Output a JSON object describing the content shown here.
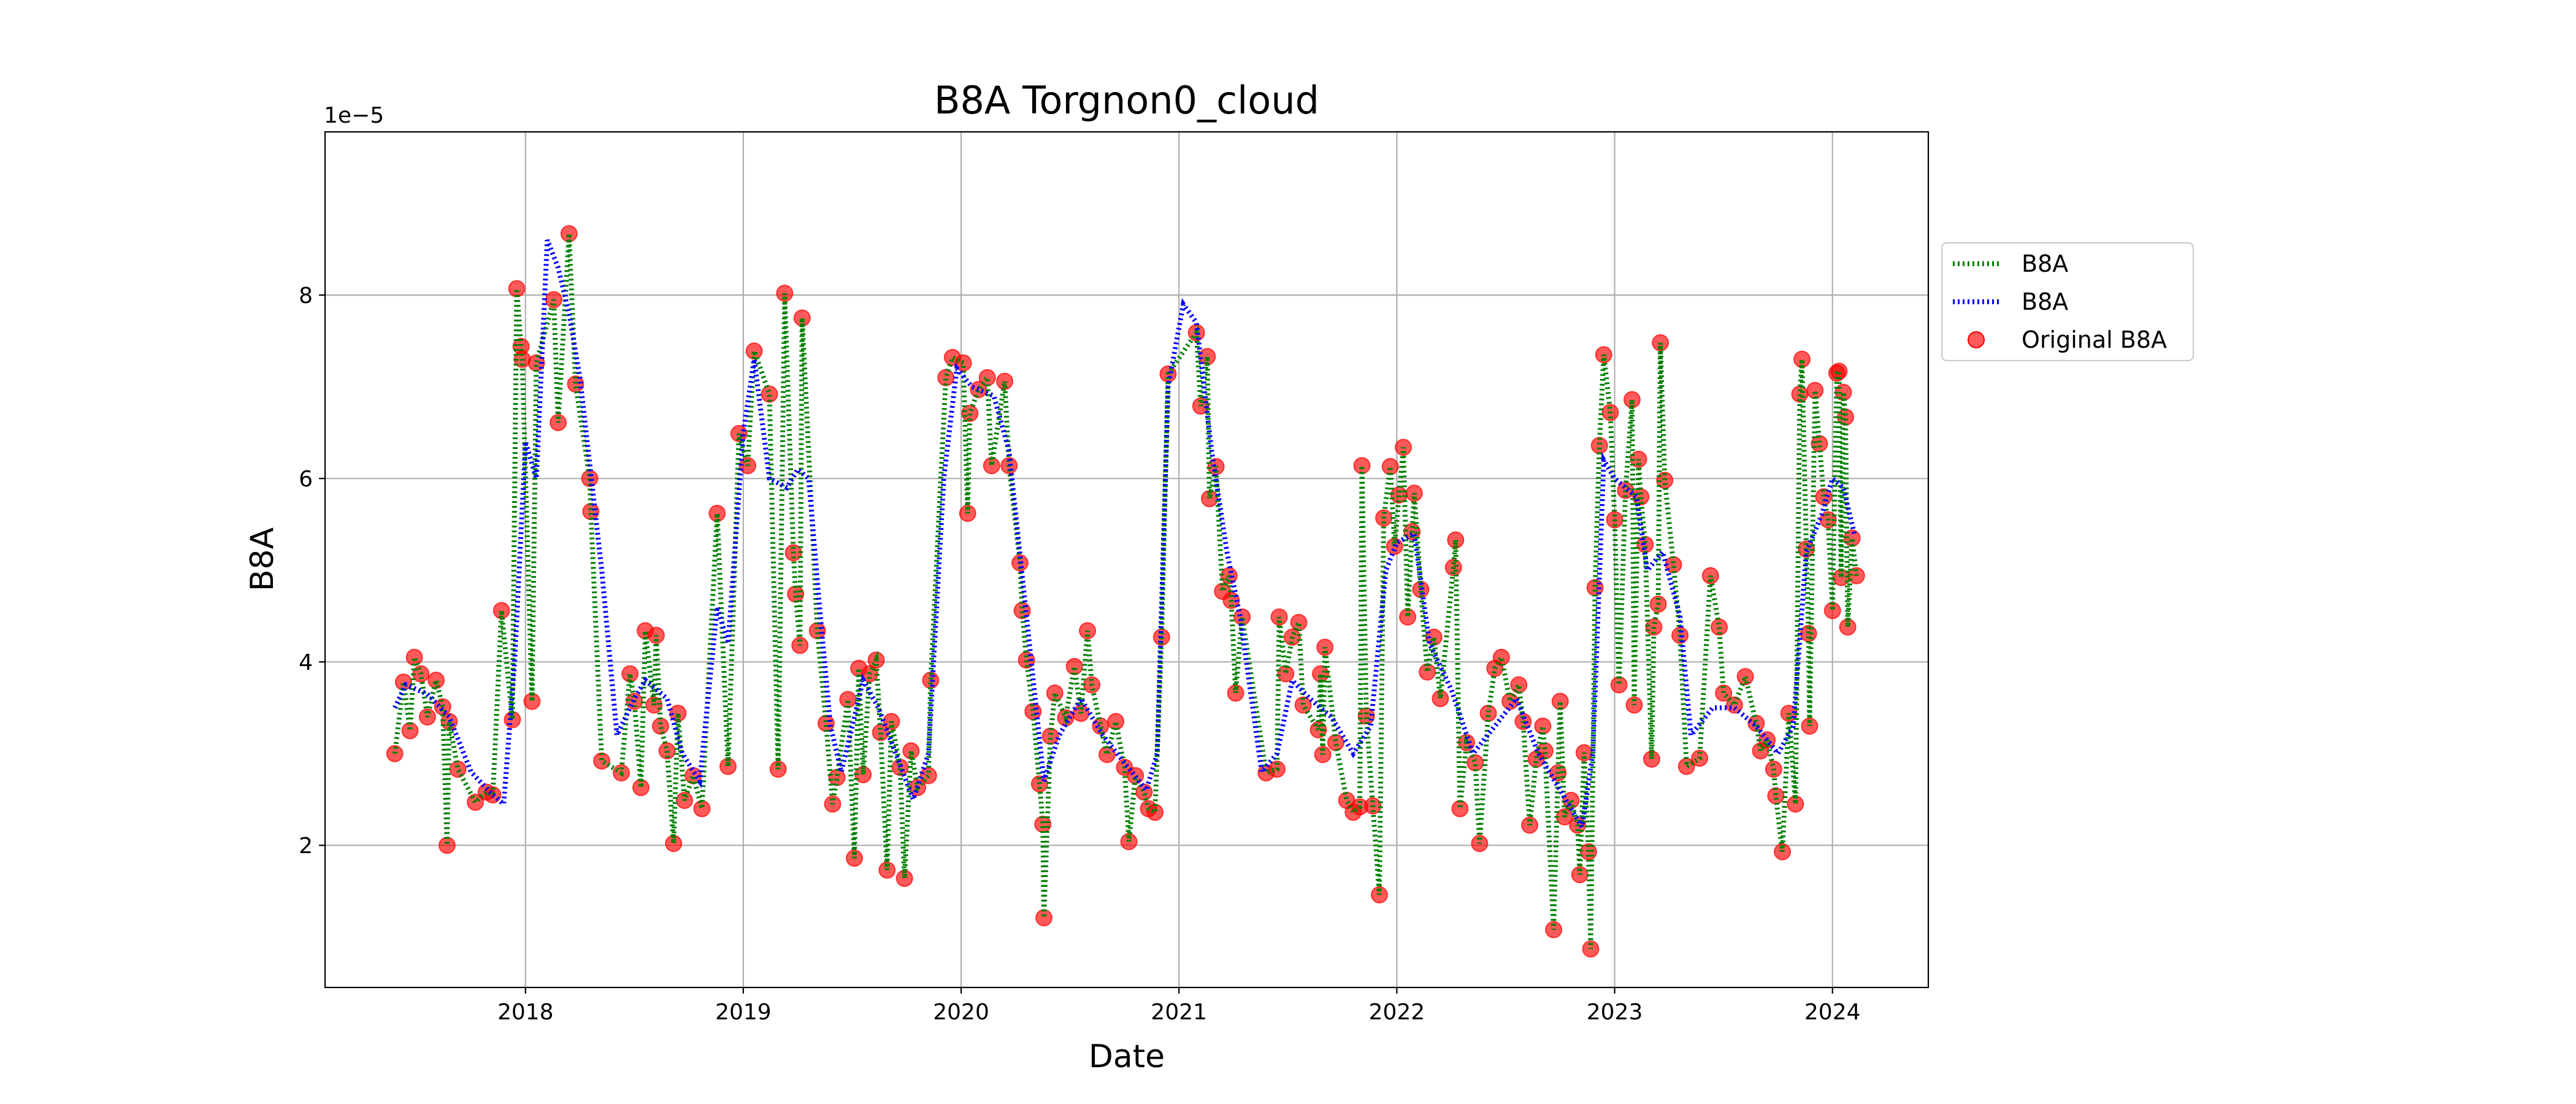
{
  "chart_data": {
    "type": "line",
    "title": "B8A Torgnon0_cloud",
    "x_label": "Date",
    "y_label": "B8A",
    "y_offset_text": "1e−5",
    "xlim": [
      2017.08,
      2024.44
    ],
    "xticks": [
      2018,
      2019,
      2020,
      2021,
      2022,
      2023,
      2024
    ],
    "ylim": [
      0.45,
      9.78
    ],
    "yticks": [
      2,
      4,
      6,
      8
    ],
    "grid": true,
    "legend": "right outside",
    "x": [
      2017.4,
      2017.44,
      2017.47,
      2017.49,
      2017.52,
      2017.55,
      2017.59,
      2017.62,
      2017.64,
      2017.65,
      2017.69,
      2017.77,
      2017.82,
      2017.85,
      2017.89,
      2017.94,
      2017.96,
      2017.98,
      2017.985,
      2018.03,
      2018.05,
      2018.13,
      2018.15,
      2018.2,
      2018.23,
      2018.295,
      2018.3,
      2018.35,
      2018.44,
      2018.48,
      2018.5,
      2018.53,
      2018.55,
      2018.59,
      2018.6,
      2018.62,
      2018.65,
      2018.68,
      2018.7,
      2018.73,
      2018.77,
      2018.81,
      2018.88,
      2018.93,
      2018.98,
      2019.02,
      2019.05,
      2019.12,
      2019.16,
      2019.19,
      2019.23,
      2019.24,
      2019.26,
      2019.27,
      2019.34,
      2019.38,
      2019.41,
      2019.43,
      2019.48,
      2019.51,
      2019.53,
      2019.55,
      2019.58,
      2019.61,
      2019.63,
      2019.66,
      2019.68,
      2019.72,
      2019.74,
      2019.77,
      2019.8,
      2019.85,
      2019.86,
      2019.93,
      2019.96,
      2020.01,
      2020.03,
      2020.04,
      2020.08,
      2020.12,
      2020.14,
      2020.2,
      2020.22,
      2020.27,
      2020.28,
      2020.3,
      2020.33,
      2020.36,
      2020.375,
      2020.38,
      2020.41,
      2020.43,
      2020.48,
      2020.52,
      2020.55,
      2020.58,
      2020.6,
      2020.64,
      2020.67,
      2020.71,
      2020.75,
      2020.77,
      2020.8,
      2020.84,
      2020.86,
      2020.89,
      2020.92,
      2020.95,
      2021.08,
      2021.1,
      2021.13,
      2021.14,
      2021.17,
      2021.2,
      2021.23,
      2021.24,
      2021.26,
      2021.29,
      2021.4,
      2021.45,
      2021.46,
      2021.49,
      2021.52,
      2021.55,
      2021.57,
      2021.64,
      2021.65,
      2021.66,
      2021.67,
      2021.72,
      2021.77,
      2021.8,
      2021.83,
      2021.84,
      2021.86,
      2021.89,
      2021.92,
      2021.94,
      2021.97,
      2021.99,
      2022.01,
      2022.03,
      2022.05,
      2022.07,
      2022.08,
      2022.11,
      2022.14,
      2022.17,
      2022.2,
      2022.26,
      2022.27,
      2022.29,
      2022.32,
      2022.36,
      2022.38,
      2022.42,
      2022.45,
      2022.48,
      2022.52,
      2022.56,
      2022.58,
      2022.61,
      2022.64,
      2022.67,
      2022.68,
      2022.72,
      2022.74,
      2022.75,
      2022.77,
      2022.8,
      2022.83,
      2022.84,
      2022.86,
      2022.88,
      2022.89,
      2022.91,
      2022.93,
      2022.95,
      2022.98,
      2023.0,
      2023.02,
      2023.05,
      2023.08,
      2023.09,
      2023.11,
      2023.12,
      2023.14,
      2023.17,
      2023.18,
      2023.2,
      2023.21,
      2023.23,
      2023.27,
      2023.3,
      2023.33,
      2023.39,
      2023.44,
      2023.48,
      2023.5,
      2023.55,
      2023.6,
      2023.65,
      2023.67,
      2023.7,
      2023.73,
      2023.74,
      2023.77,
      2023.8,
      2023.83,
      2023.85,
      2023.86,
      2023.88,
      2023.89,
      2023.895,
      2023.92,
      2023.94,
      2023.96,
      2023.98,
      2024.0,
      2024.02,
      2024.03,
      2024.04,
      2024.05,
      2024.06,
      2024.07,
      2024.09,
      2024.11
    ],
    "series": [
      {
        "name": "B8A",
        "type": "line",
        "color": "#008000",
        "values": [
          3.0,
          3.78,
          3.25,
          4.05,
          3.87,
          3.4,
          3.8,
          3.51,
          2.0,
          3.35,
          2.83,
          2.47,
          2.58,
          2.55,
          4.56,
          3.37,
          8.07,
          7.44,
          7.3,
          3.57,
          7.26,
          7.95,
          6.61,
          8.67,
          7.03,
          6.0,
          5.64,
          2.92,
          2.79,
          3.87,
          3.57,
          2.63,
          4.34,
          3.53,
          4.29,
          3.3,
          3.03,
          2.02,
          3.44,
          2.49,
          2.76,
          2.4,
          5.62,
          2.86,
          6.49,
          6.14,
          7.39,
          6.92,
          2.83,
          8.02,
          5.19,
          4.74,
          4.18,
          7.75,
          4.34,
          3.33,
          2.45,
          2.74,
          3.59,
          1.86,
          3.93,
          2.77,
          3.87,
          4.02,
          3.23,
          1.73,
          3.35,
          2.85,
          1.64,
          3.03,
          2.63,
          2.76,
          3.8,
          7.1,
          7.32,
          7.26,
          5.62,
          6.71,
          6.97,
          7.1,
          6.14,
          7.06,
          6.14,
          5.08,
          4.56,
          4.02,
          3.46,
          2.67,
          2.23,
          1.21,
          3.19,
          3.66,
          3.39,
          3.95,
          3.44,
          4.34,
          3.75,
          3.3,
          2.99,
          3.35,
          2.85,
          2.04,
          2.76,
          2.58,
          2.4,
          2.36,
          4.27,
          7.14,
          7.59,
          6.79,
          7.33,
          5.78,
          6.13,
          4.77,
          4.94,
          4.67,
          3.66,
          4.49,
          2.79,
          2.83,
          4.49,
          3.87,
          4.27,
          4.43,
          3.53,
          3.26,
          3.87,
          2.99,
          4.16,
          3.12,
          2.49,
          2.36,
          2.42,
          6.14,
          3.41,
          2.43,
          1.46,
          5.57,
          6.13,
          5.26,
          5.82,
          6.34,
          4.49,
          5.42,
          5.84,
          4.79,
          3.89,
          4.27,
          3.6,
          5.03,
          5.33,
          2.4,
          3.12,
          2.9,
          2.02,
          3.44,
          3.93,
          4.05,
          3.57,
          3.75,
          3.35,
          2.22,
          2.94,
          3.3,
          3.03,
          1.08,
          2.79,
          3.57,
          2.31,
          2.49,
          2.22,
          1.68,
          3.01,
          1.93,
          0.87,
          4.81,
          6.36,
          7.35,
          6.72,
          5.55,
          3.75,
          5.87,
          6.86,
          3.53,
          6.21,
          5.8,
          5.28,
          2.94,
          4.38,
          4.63,
          7.48,
          5.98,
          5.06,
          4.29,
          2.86,
          2.95,
          4.94,
          4.38,
          3.66,
          3.53,
          3.84,
          3.33,
          3.03,
          3.15,
          2.83,
          2.54,
          1.93,
          3.44,
          2.45,
          6.92,
          7.3,
          5.23,
          4.31,
          3.3,
          6.96,
          6.38,
          5.8,
          5.55,
          4.56,
          7.15,
          7.17,
          4.92,
          6.94,
          6.67,
          4.38,
          5.35,
          4.94
        ]
      },
      {
        "name": "B8A",
        "type": "line",
        "color": "#0000ff",
        "x": [
          2017.4,
          2017.45,
          2017.55,
          2017.65,
          2017.75,
          2017.85,
          2017.9,
          2017.95,
          2018.0,
          2018.05,
          2018.1,
          2018.15,
          2018.2,
          2018.25,
          2018.35,
          2018.42,
          2018.5,
          2018.55,
          2018.65,
          2018.72,
          2018.8,
          2018.88,
          2018.93,
          2019.0,
          2019.05,
          2019.12,
          2019.2,
          2019.25,
          2019.3,
          2019.35,
          2019.4,
          2019.45,
          2019.5,
          2019.55,
          2019.62,
          2019.7,
          2019.78,
          2019.85,
          2019.92,
          2019.98,
          2020.05,
          2020.15,
          2020.22,
          2020.3,
          2020.38,
          2020.45,
          2020.55,
          2020.65,
          2020.75,
          2020.85,
          2020.9,
          2020.95,
          2021.02,
          2021.08,
          2021.15,
          2021.22,
          2021.28,
          2021.38,
          2021.45,
          2021.52,
          2021.6,
          2021.7,
          2021.8,
          2021.88,
          2021.95,
          2022.0,
          2022.08,
          2022.15,
          2022.25,
          2022.35,
          2022.45,
          2022.55,
          2022.65,
          2022.75,
          2022.85,
          2022.9,
          2022.95,
          2023.0,
          2023.1,
          2023.15,
          2023.22,
          2023.3,
          2023.35,
          2023.45,
          2023.55,
          2023.65,
          2023.75,
          2023.82,
          2023.88,
          2023.95,
          2024.0,
          2024.05,
          2024.1
        ],
        "values": [
          3.5,
          3.75,
          3.65,
          3.4,
          2.8,
          2.55,
          2.45,
          4.0,
          6.4,
          6.0,
          8.6,
          8.3,
          7.8,
          7.1,
          5.0,
          3.2,
          3.6,
          3.8,
          3.6,
          3.0,
          2.7,
          4.6,
          4.2,
          6.5,
          7.3,
          6.0,
          5.9,
          6.1,
          6.0,
          4.6,
          3.3,
          2.8,
          3.3,
          3.8,
          3.5,
          3.0,
          2.5,
          3.0,
          6.0,
          7.2,
          7.0,
          6.9,
          6.3,
          4.5,
          2.7,
          3.2,
          3.6,
          3.2,
          2.9,
          2.6,
          3.0,
          7.0,
          7.9,
          7.7,
          6.3,
          5.2,
          4.5,
          2.8,
          3.0,
          3.8,
          3.6,
          3.4,
          3.0,
          3.3,
          5.0,
          5.3,
          5.4,
          4.2,
          3.7,
          3.0,
          3.3,
          3.6,
          3.0,
          2.6,
          2.2,
          3.0,
          6.2,
          6.0,
          5.8,
          5.0,
          5.2,
          4.5,
          3.2,
          3.5,
          3.5,
          3.3,
          3.0,
          3.3,
          5.2,
          5.6,
          6.0,
          5.9,
          5.4
        ]
      },
      {
        "name": "Original B8A",
        "type": "scatter",
        "color": "#ff0000",
        "values": [
          3.0,
          3.78,
          3.25,
          4.05,
          3.87,
          3.4,
          3.8,
          3.51,
          2.0,
          3.35,
          2.83,
          2.47,
          2.58,
          2.55,
          4.56,
          3.37,
          8.07,
          7.44,
          7.3,
          3.57,
          7.26,
          7.95,
          6.61,
          8.67,
          7.03,
          6.0,
          5.64,
          2.92,
          2.79,
          3.87,
          3.57,
          2.63,
          4.34,
          3.53,
          4.29,
          3.3,
          3.03,
          2.02,
          3.44,
          2.49,
          2.76,
          2.4,
          5.62,
          2.86,
          6.49,
          6.14,
          7.39,
          6.92,
          2.83,
          8.02,
          5.19,
          4.74,
          4.18,
          7.75,
          4.34,
          3.33,
          2.45,
          2.74,
          3.59,
          1.86,
          3.93,
          2.77,
          3.87,
          4.02,
          3.23,
          1.73,
          3.35,
          2.85,
          1.64,
          3.03,
          2.63,
          2.76,
          3.8,
          7.1,
          7.32,
          7.26,
          5.62,
          6.71,
          6.97,
          7.1,
          6.14,
          7.06,
          6.14,
          5.08,
          4.56,
          4.02,
          3.46,
          2.67,
          2.23,
          1.21,
          3.19,
          3.66,
          3.39,
          3.95,
          3.44,
          4.34,
          3.75,
          3.3,
          2.99,
          3.35,
          2.85,
          2.04,
          2.76,
          2.58,
          2.4,
          2.36,
          4.27,
          7.14,
          7.59,
          6.79,
          7.33,
          5.78,
          6.13,
          4.77,
          4.94,
          4.67,
          3.66,
          4.49,
          2.79,
          2.83,
          4.49,
          3.87,
          4.27,
          4.43,
          3.53,
          3.26,
          3.87,
          2.99,
          4.16,
          3.12,
          2.49,
          2.36,
          2.42,
          6.14,
          3.41,
          2.43,
          1.46,
          5.57,
          6.13,
          5.26,
          5.82,
          6.34,
          4.49,
          5.42,
          5.84,
          4.79,
          3.89,
          4.27,
          3.6,
          5.03,
          5.33,
          2.4,
          3.12,
          2.9,
          2.02,
          3.44,
          3.93,
          4.05,
          3.57,
          3.75,
          3.35,
          2.22,
          2.94,
          3.3,
          3.03,
          1.08,
          2.79,
          3.57,
          2.31,
          2.49,
          2.22,
          1.68,
          3.01,
          1.93,
          0.87,
          4.81,
          6.36,
          7.35,
          6.72,
          5.55,
          3.75,
          5.87,
          6.86,
          3.53,
          6.21,
          5.8,
          5.28,
          2.94,
          4.38,
          4.63,
          7.48,
          5.98,
          5.06,
          4.29,
          2.86,
          2.95,
          4.94,
          4.38,
          3.66,
          3.53,
          3.84,
          3.33,
          3.03,
          3.15,
          2.83,
          2.54,
          1.93,
          3.44,
          2.45,
          6.92,
          7.3,
          5.23,
          4.31,
          3.3,
          6.96,
          6.38,
          5.8,
          5.55,
          4.56,
          7.15,
          7.17,
          4.92,
          6.94,
          6.67,
          4.38,
          5.35,
          4.94
        ]
      }
    ]
  }
}
